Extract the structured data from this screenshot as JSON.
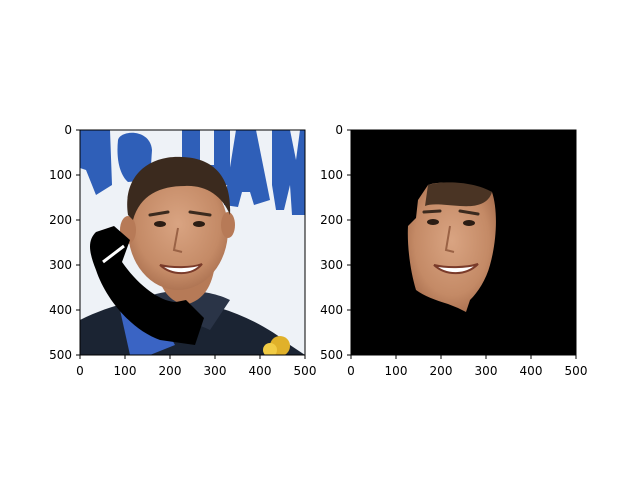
{
  "figure": {
    "panels": [
      {
        "id": "left",
        "image_desc": "photo-face-with-black-occlusion",
        "xticks": [
          "0",
          "100",
          "200",
          "300",
          "400",
          "500"
        ],
        "yticks": [
          "0",
          "100",
          "200",
          "300",
          "400",
          "500"
        ]
      },
      {
        "id": "right",
        "image_desc": "masked-face-on-black",
        "xticks": [
          "0",
          "100",
          "200",
          "300",
          "400",
          "500"
        ],
        "yticks": [
          "0",
          "100",
          "200",
          "300",
          "400",
          "500"
        ]
      }
    ],
    "colors": {
      "background": "#ffffff",
      "photo_bg": "#eef2f7",
      "banner_text": "#2f5fb8",
      "mask": "#000000",
      "skin": "#c98f6c",
      "hair": "#3b2a1e",
      "shirt": "#1b2433"
    }
  }
}
